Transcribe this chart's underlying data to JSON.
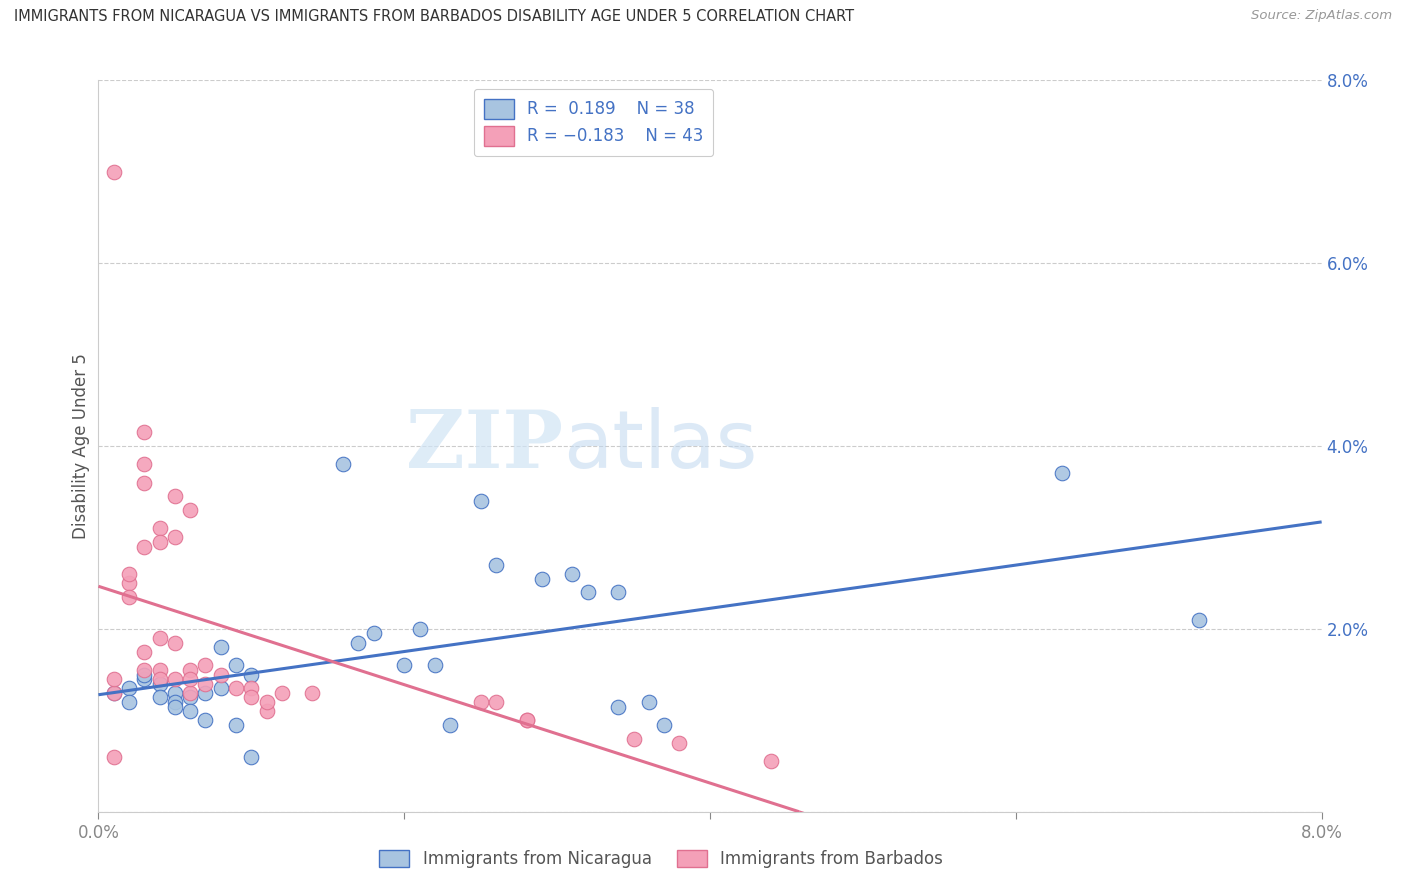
{
  "title": "IMMIGRANTS FROM NICARAGUA VS IMMIGRANTS FROM BARBADOS DISABILITY AGE UNDER 5 CORRELATION CHART",
  "source": "Source: ZipAtlas.com",
  "ylabel": "Disability Age Under 5",
  "xlim": [
    0.0,
    0.08
  ],
  "ylim": [
    0.0,
    0.08
  ],
  "nicaragua_color": "#a8c4e0",
  "barbados_color": "#f4a0b8",
  "nicaragua_line_color": "#4472c4",
  "barbados_line_color": "#e07090",
  "legend_r_nicaragua": "R =  0.189",
  "legend_n_nicaragua": "N = 38",
  "legend_r_barbados": "R = -0.183",
  "legend_n_barbados": "N = 43",
  "watermark_zip": "ZIP",
  "watermark_atlas": "atlas",
  "nicaragua_points": [
    [
      0.001,
      0.013
    ],
    [
      0.002,
      0.0135
    ],
    [
      0.002,
      0.012
    ],
    [
      0.003,
      0.0145
    ],
    [
      0.003,
      0.015
    ],
    [
      0.004,
      0.014
    ],
    [
      0.004,
      0.0125
    ],
    [
      0.005,
      0.013
    ],
    [
      0.005,
      0.012
    ],
    [
      0.005,
      0.0115
    ],
    [
      0.006,
      0.0125
    ],
    [
      0.006,
      0.011
    ],
    [
      0.007,
      0.01
    ],
    [
      0.007,
      0.013
    ],
    [
      0.008,
      0.0135
    ],
    [
      0.008,
      0.018
    ],
    [
      0.009,
      0.016
    ],
    [
      0.009,
      0.0095
    ],
    [
      0.01,
      0.015
    ],
    [
      0.01,
      0.006
    ],
    [
      0.016,
      0.038
    ],
    [
      0.017,
      0.0185
    ],
    [
      0.018,
      0.0195
    ],
    [
      0.02,
      0.016
    ],
    [
      0.021,
      0.02
    ],
    [
      0.022,
      0.016
    ],
    [
      0.023,
      0.0095
    ],
    [
      0.025,
      0.034
    ],
    [
      0.026,
      0.027
    ],
    [
      0.029,
      0.0255
    ],
    [
      0.031,
      0.026
    ],
    [
      0.032,
      0.024
    ],
    [
      0.034,
      0.024
    ],
    [
      0.034,
      0.0115
    ],
    [
      0.036,
      0.012
    ],
    [
      0.037,
      0.0095
    ],
    [
      0.063,
      0.037
    ],
    [
      0.072,
      0.021
    ]
  ],
  "barbados_points": [
    [
      0.001,
      0.07
    ],
    [
      0.001,
      0.013
    ],
    [
      0.001,
      0.0145
    ],
    [
      0.001,
      0.006
    ],
    [
      0.002,
      0.025
    ],
    [
      0.002,
      0.026
    ],
    [
      0.002,
      0.0235
    ],
    [
      0.003,
      0.038
    ],
    [
      0.003,
      0.036
    ],
    [
      0.003,
      0.0415
    ],
    [
      0.003,
      0.029
    ],
    [
      0.003,
      0.0175
    ],
    [
      0.003,
      0.0155
    ],
    [
      0.004,
      0.031
    ],
    [
      0.004,
      0.0295
    ],
    [
      0.004,
      0.019
    ],
    [
      0.004,
      0.0155
    ],
    [
      0.004,
      0.0145
    ],
    [
      0.005,
      0.0345
    ],
    [
      0.005,
      0.03
    ],
    [
      0.005,
      0.0185
    ],
    [
      0.005,
      0.0145
    ],
    [
      0.006,
      0.033
    ],
    [
      0.006,
      0.0155
    ],
    [
      0.006,
      0.013
    ],
    [
      0.006,
      0.0145
    ],
    [
      0.007,
      0.016
    ],
    [
      0.007,
      0.014
    ],
    [
      0.008,
      0.015
    ],
    [
      0.009,
      0.0135
    ],
    [
      0.01,
      0.0135
    ],
    [
      0.01,
      0.0125
    ],
    [
      0.011,
      0.011
    ],
    [
      0.011,
      0.012
    ],
    [
      0.012,
      0.013
    ],
    [
      0.014,
      0.013
    ],
    [
      0.025,
      0.012
    ],
    [
      0.026,
      0.012
    ],
    [
      0.028,
      0.01
    ],
    [
      0.028,
      0.01
    ],
    [
      0.035,
      0.008
    ],
    [
      0.038,
      0.0075
    ],
    [
      0.044,
      0.0055
    ]
  ]
}
